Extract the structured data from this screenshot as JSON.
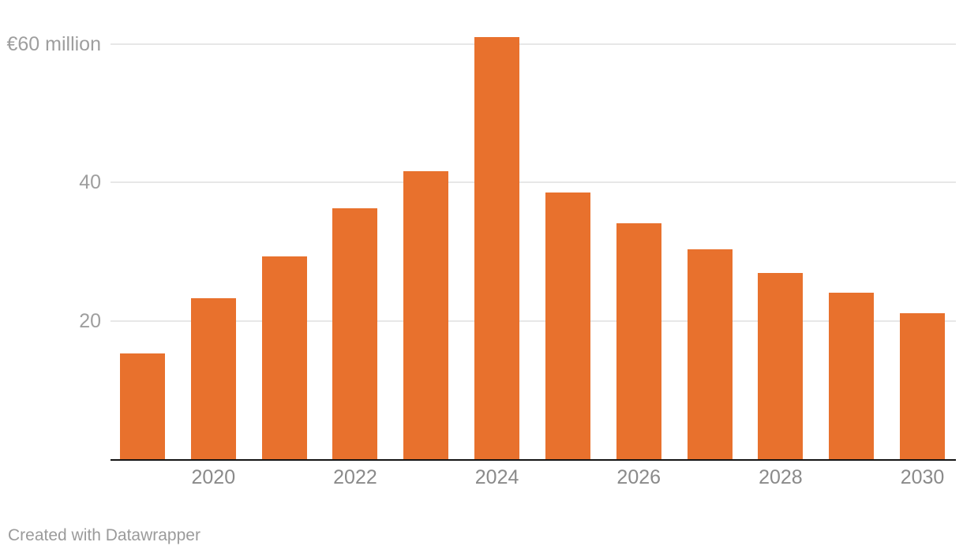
{
  "footer": {
    "credit": "Created with Datawrapper"
  },
  "colors": {
    "bar": "#e8712d",
    "gridline": "#e7e7e7",
    "axis_line": "#141414",
    "x_tick_label": "#8a8a8a",
    "y_tick_label": "#9e9e9e",
    "credit": "#9b9b9b",
    "background": "#ffffff"
  },
  "chart_data": {
    "type": "bar",
    "unit": "€ million",
    "categories": [
      "2019",
      "2020",
      "2021",
      "2022",
      "2023",
      "2024",
      "2025",
      "2026",
      "2027",
      "2028",
      "2029",
      "2030"
    ],
    "values": [
      15.3,
      23.3,
      29.3,
      36.2,
      41.6,
      61,
      38.5,
      34.1,
      30.3,
      26.9,
      24,
      21.1
    ],
    "y_ticks": [
      {
        "value": 20,
        "label": "20"
      },
      {
        "value": 40,
        "label": "40"
      },
      {
        "value": 60,
        "label": "€60 million"
      }
    ],
    "x_tick_labels": [
      "2020",
      "2022",
      "2024",
      "2026",
      "2028",
      "2030"
    ],
    "ylim": [
      0,
      62
    ],
    "grid": "horizontal",
    "legend": "none"
  }
}
